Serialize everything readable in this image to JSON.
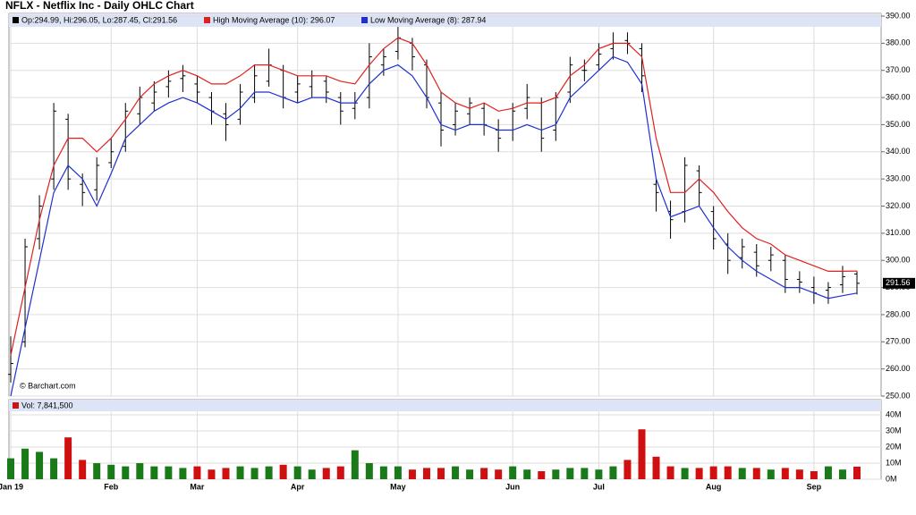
{
  "chart_data": {
    "type": "ohlc",
    "title": "NFLX - Netflix Inc - Daily OHLC Chart",
    "ohlc_legend": "Op:294.99, Hi:296.05, Lo:287.45, Cl:291.56",
    "credit": "© Barchart.com",
    "grid": true,
    "color": "#000000",
    "categories": [
      "Jan 19",
      null,
      null,
      null,
      null,
      null,
      null,
      "Feb",
      null,
      null,
      null,
      null,
      null,
      "Mar",
      null,
      null,
      null,
      null,
      null,
      null,
      "Apr",
      null,
      null,
      null,
      null,
      null,
      null,
      "May",
      null,
      null,
      null,
      null,
      null,
      null,
      null,
      "Jun",
      null,
      null,
      null,
      null,
      null,
      "Jul",
      null,
      null,
      null,
      null,
      null,
      null,
      null,
      "Aug",
      null,
      null,
      null,
      null,
      null,
      null,
      "Sep",
      null,
      null,
      null
    ],
    "open": [
      258,
      270,
      308,
      330,
      352,
      328,
      326,
      336,
      342,
      354,
      358,
      364,
      367,
      365,
      360,
      354,
      352,
      360,
      366,
      370,
      362,
      364,
      366,
      360,
      356,
      360,
      372,
      377,
      380,
      372,
      358,
      350,
      354,
      356,
      348,
      348,
      356,
      358,
      348,
      362,
      370,
      372,
      378,
      381,
      378,
      328,
      318,
      318,
      333,
      318,
      306,
      301,
      303,
      300,
      300,
      293,
      290,
      289,
      291,
      294.99
    ],
    "high": [
      272,
      308,
      324,
      358,
      354,
      332,
      338,
      345,
      358,
      364,
      366,
      370,
      372,
      368,
      362,
      358,
      365,
      372,
      378,
      372,
      368,
      370,
      368,
      362,
      362,
      380,
      378,
      386,
      382,
      374,
      362,
      358,
      360,
      358,
      352,
      358,
      365,
      360,
      362,
      375,
      374,
      380,
      384,
      384,
      380,
      330,
      322,
      338,
      335,
      320,
      310,
      308,
      306,
      305,
      302,
      296,
      294,
      292,
      298,
      296.05
    ],
    "low": [
      255,
      268,
      304,
      326,
      326,
      320,
      322,
      334,
      340,
      350,
      355,
      360,
      362,
      358,
      350,
      344,
      350,
      358,
      364,
      356,
      358,
      360,
      358,
      350,
      352,
      356,
      368,
      374,
      370,
      356,
      342,
      346,
      350,
      346,
      340,
      344,
      352,
      340,
      344,
      358,
      366,
      370,
      374,
      376,
      362,
      318,
      308,
      314,
      320,
      304,
      295,
      297,
      294,
      296,
      288,
      288,
      284,
      284,
      288,
      287.45
    ],
    "close": [
      262,
      305,
      320,
      355,
      330,
      325,
      335,
      340,
      355,
      360,
      362,
      366,
      368,
      362,
      355,
      350,
      362,
      368,
      372,
      360,
      365,
      368,
      362,
      355,
      358,
      375,
      375,
      382,
      375,
      360,
      348,
      355,
      358,
      350,
      345,
      355,
      360,
      345,
      360,
      372,
      370,
      376,
      380,
      380,
      368,
      325,
      315,
      335,
      325,
      308,
      300,
      305,
      298,
      302,
      293,
      292,
      288,
      290,
      294,
      291.56
    ],
    "series": [
      {
        "name": "High Moving Average (10): 296.07",
        "color": "#e02020",
        "values": [
          265,
          290,
          315,
          335,
          345,
          345,
          340,
          345,
          352,
          360,
          365,
          368,
          370,
          368,
          365,
          365,
          368,
          372,
          372,
          370,
          368,
          368,
          368,
          366,
          365,
          372,
          378,
          382,
          380,
          372,
          362,
          358,
          356,
          358,
          355,
          356,
          358,
          358,
          360,
          368,
          372,
          378,
          380,
          380,
          375,
          345,
          325,
          325,
          330,
          325,
          318,
          312,
          308,
          306,
          302,
          300,
          298,
          296,
          296,
          296.07
        ]
      },
      {
        "name": "Low Moving Average (8): 287.94",
        "color": "#2030d0",
        "values": [
          250,
          275,
          300,
          325,
          335,
          330,
          320,
          332,
          345,
          350,
          355,
          358,
          360,
          358,
          355,
          352,
          356,
          362,
          362,
          360,
          358,
          360,
          360,
          358,
          358,
          365,
          370,
          372,
          368,
          360,
          350,
          348,
          350,
          350,
          348,
          348,
          350,
          348,
          350,
          360,
          365,
          370,
          375,
          373,
          365,
          330,
          316,
          318,
          320,
          312,
          305,
          300,
          296,
          293,
          290,
          290,
          288,
          286,
          287,
          287.94
        ]
      }
    ],
    "ylim": [
      250,
      390
    ],
    "yticks": [
      {
        "value": 250,
        "label": "250.00"
      },
      {
        "value": 260,
        "label": "260.00"
      },
      {
        "value": 270,
        "label": "270.00"
      },
      {
        "value": 280,
        "label": "280.00"
      },
      {
        "value": 290,
        "label": "290.00"
      },
      {
        "value": 300,
        "label": "300.00"
      },
      {
        "value": 310,
        "label": "310.00"
      },
      {
        "value": 320,
        "label": "320.00"
      },
      {
        "value": 330,
        "label": "330.00"
      },
      {
        "value": 340,
        "label": "340.00"
      },
      {
        "value": 350,
        "label": "350.00"
      },
      {
        "value": 360,
        "label": "360.00"
      },
      {
        "value": 370,
        "label": "370.00"
      },
      {
        "value": 380,
        "label": "380.00"
      },
      {
        "value": 390,
        "label": "390.00"
      }
    ],
    "volume": {
      "label": "Vol: 7,841,500",
      "up_color": "#1a7a1a",
      "down_color": "#d01010",
      "values": [
        13,
        19,
        17,
        13,
        26,
        12,
        10,
        9,
        8,
        10,
        8,
        8,
        7,
        8,
        6,
        7,
        8,
        7,
        8,
        9,
        8,
        6,
        7,
        8,
        18,
        10,
        8,
        8,
        6,
        7,
        7,
        8,
        6,
        7,
        6,
        8,
        6,
        5,
        6,
        7,
        7,
        6,
        8,
        12,
        31,
        14,
        8,
        7,
        7,
        8,
        8,
        7,
        7,
        6,
        7,
        6,
        5,
        8,
        6,
        7.8415
      ],
      "ylim": [
        0,
        40
      ],
      "yticks": [
        {
          "value": 0,
          "label": "0M"
        },
        {
          "value": 10,
          "label": "10M"
        },
        {
          "value": 20,
          "label": "20M"
        },
        {
          "value": 30,
          "label": "30M"
        },
        {
          "value": 40,
          "label": "40M"
        }
      ]
    }
  }
}
